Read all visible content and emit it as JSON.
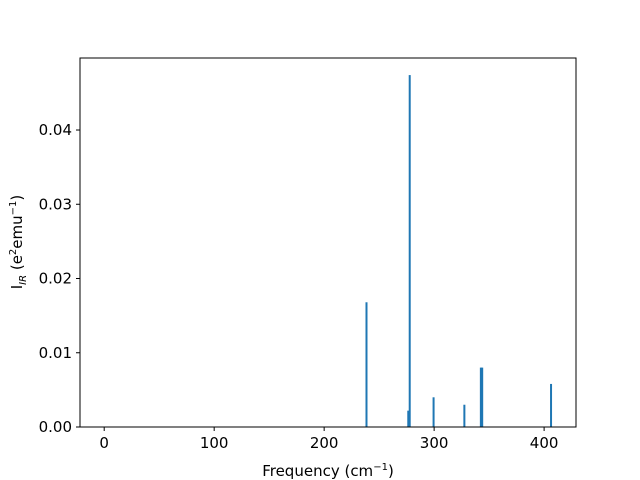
{
  "chart_data": {
    "type": "bar",
    "title": "",
    "xlabel": {
      "text": "Frequency (cm",
      "sup": "−1",
      "close": ")"
    },
    "ylabel": {
      "main": "I",
      "sub": "IR",
      "mid": " (e",
      "sup1": "2",
      "mid2": "emu",
      "sup2": "−1",
      "close": ")"
    },
    "xlim": [
      -22,
      429
    ],
    "ylim": [
      0,
      0.0497
    ],
    "xticks": [
      0,
      100,
      200,
      300,
      400
    ],
    "xtick_labels": [
      "0",
      "100",
      "200",
      "300",
      "400"
    ],
    "yticks": [
      0,
      0.01,
      0.02,
      0.03,
      0.04
    ],
    "ytick_labels": [
      "0.00",
      "0.01",
      "0.02",
      "0.03",
      "0.04"
    ],
    "grid": false,
    "bar_color": "#1f77b4",
    "x": [
      238.5,
      276.5,
      277.8,
      299.5,
      327.5,
      342.5,
      343.7,
      406.3
    ],
    "values": [
      0.0168,
      0.0022,
      0.0474,
      0.004,
      0.003,
      0.008,
      0.008,
      0.0058
    ]
  }
}
